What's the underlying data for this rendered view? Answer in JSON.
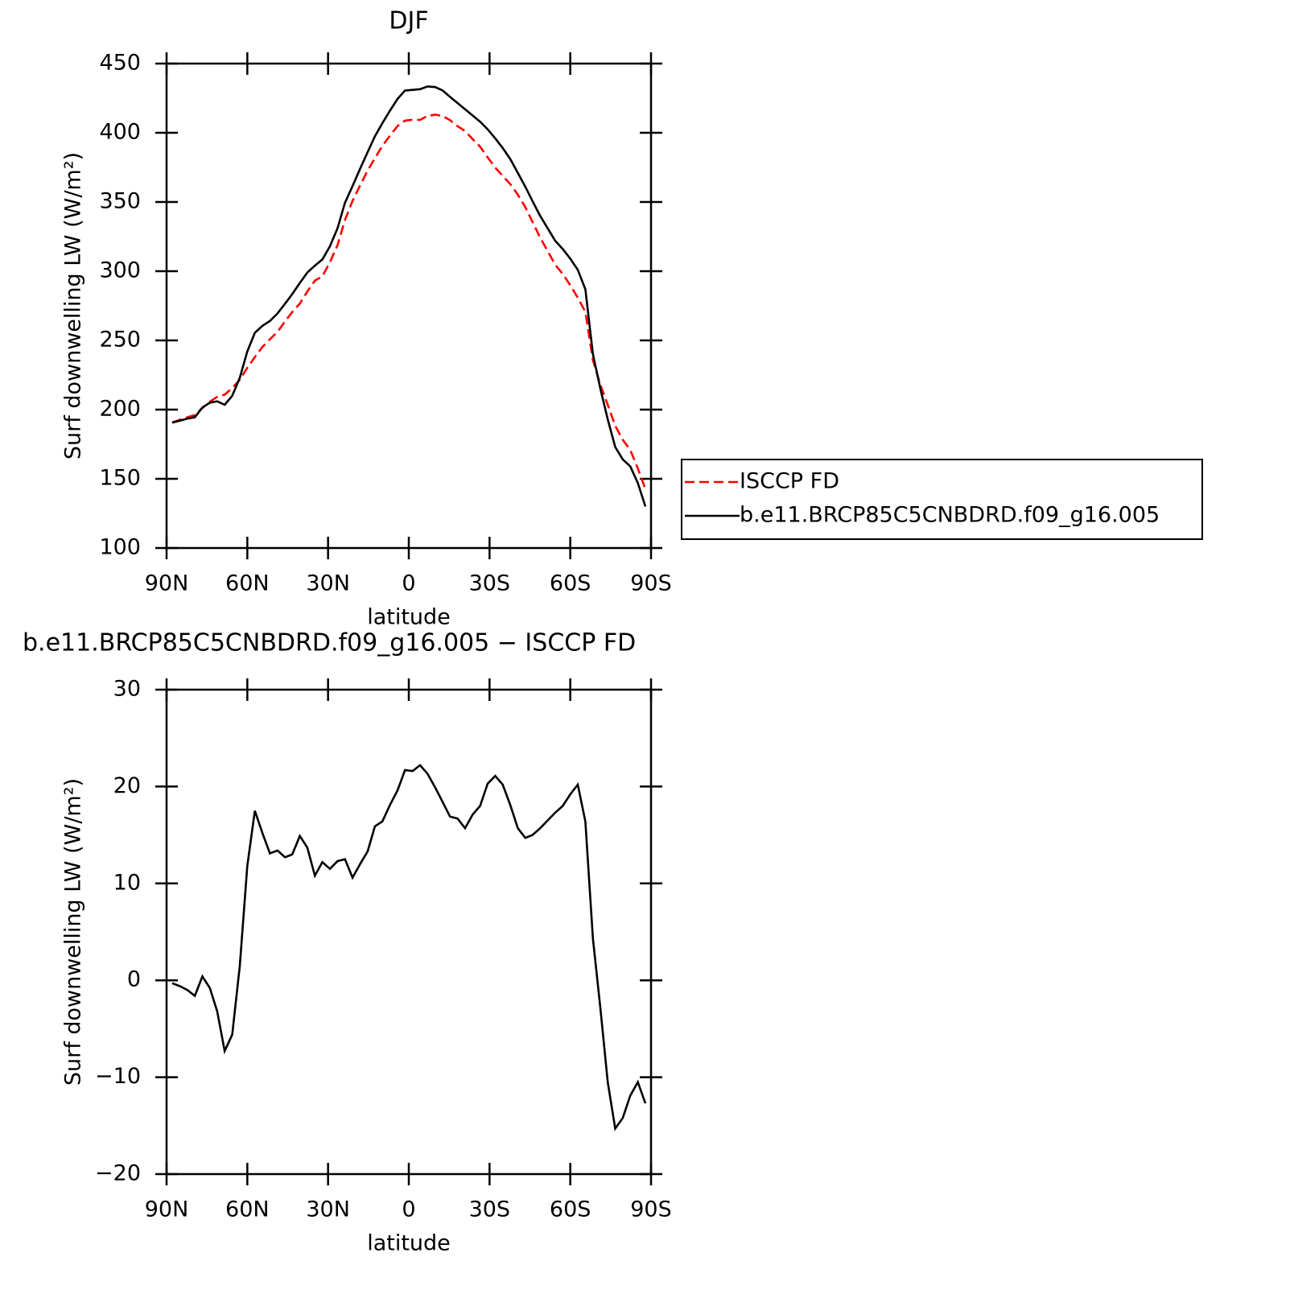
{
  "chart_data": [
    {
      "type": "line",
      "title": "DJF",
      "xlabel": "latitude",
      "ylabel": "Surf downwelling LW (W/m²)",
      "xlim": [
        90,
        -90
      ],
      "xticks": [
        {
          "value": 90,
          "label": "90N"
        },
        {
          "value": 60,
          "label": "60N"
        },
        {
          "value": 30,
          "label": "30N"
        },
        0,
        {
          "value": -30,
          "label": "30S"
        },
        {
          "value": -60,
          "label": "60S"
        },
        {
          "value": -90,
          "label": "90S"
        }
      ],
      "ylim": [
        100,
        450
      ],
      "yticks": [
        100,
        150,
        200,
        250,
        300,
        350,
        400,
        450
      ],
      "legend": "right",
      "x": [
        87.9,
        85.1,
        82.3,
        79.5,
        76.7,
        73.9,
        71.2,
        68.4,
        65.6,
        62.8,
        60.0,
        57.2,
        54.4,
        51.6,
        48.8,
        46.0,
        43.3,
        40.5,
        37.7,
        34.9,
        32.1,
        29.3,
        26.5,
        23.7,
        20.9,
        18.1,
        15.3,
        12.6,
        9.8,
        7.0,
        4.2,
        1.4,
        -1.4,
        -4.2,
        -7.0,
        -9.8,
        -12.6,
        -15.3,
        -18.1,
        -20.9,
        -23.7,
        -26.5,
        -29.3,
        -32.1,
        -34.9,
        -37.7,
        -40.5,
        -43.3,
        -46.0,
        -48.8,
        -51.6,
        -54.4,
        -57.2,
        -60.0,
        -62.8,
        -65.6,
        -68.4,
        -71.2,
        -73.9,
        -76.7,
        -79.5,
        -82.3,
        -85.1,
        -87.9
      ],
      "series": [
        {
          "name": "ISCCP FD",
          "color": "#ff0000",
          "dash": true,
          "values": [
            190.8,
            192.6,
            194.5,
            196.1,
            201.1,
            205.8,
            209.2,
            210.8,
            215.6,
            221.5,
            230.2,
            238,
            245.3,
            250.9,
            256.1,
            263.8,
            270.5,
            276.6,
            285.3,
            293.2,
            296.3,
            306.5,
            318.7,
            337,
            350.9,
            362,
            372.7,
            381.6,
            390.6,
            397.9,
            404.9,
            408.8,
            409.4,
            409.3,
            412.2,
            413.1,
            412.1,
            409.1,
            404.8,
            401.3,
            395.4,
            390,
            382.2,
            374.9,
            368.8,
            362.9,
            355.3,
            346.3,
            335.5,
            324.3,
            314.5,
            304.7,
            298,
            289.8,
            280.8,
            270.6,
            235.7,
            217.9,
            203.5,
            188.3,
            178.2,
            170.9,
            157.5,
            142.7
          ]
        },
        {
          "name": "b.e11.BRCP85C5CNBDRD.f09_g16.005",
          "color": "#000000",
          "dash": false,
          "values": [
            190.5,
            192,
            193.5,
            194.5,
            201.5,
            205,
            206,
            203.5,
            210,
            223,
            242,
            255.5,
            260.5,
            264,
            269.5,
            276.5,
            283.5,
            291.5,
            299,
            304,
            308.5,
            318,
            331,
            349.5,
            361.5,
            374,
            386,
            397.5,
            407,
            416,
            424.5,
            430.5,
            431,
            431.5,
            433.5,
            433,
            430.5,
            426,
            421.5,
            417,
            412.5,
            408,
            402.5,
            396,
            389,
            381,
            371,
            361,
            350.5,
            340,
            331,
            322,
            316,
            309,
            301,
            287,
            240,
            215,
            193,
            173,
            164,
            159,
            147,
            130
          ]
        }
      ]
    },
    {
      "type": "line",
      "title": "b.e11.BRCP85C5CNBDRD.f09_g16.005 − ISCCP FD",
      "xlabel": "latitude",
      "ylabel": "Surf downwelling LW (W/m²)",
      "xlim": [
        90,
        -90
      ],
      "xticks": [
        {
          "value": 90,
          "label": "90N"
        },
        {
          "value": 60,
          "label": "60N"
        },
        {
          "value": 30,
          "label": "30N"
        },
        0,
        {
          "value": -30,
          "label": "30S"
        },
        {
          "value": -60,
          "label": "60S"
        },
        {
          "value": -90,
          "label": "90S"
        }
      ],
      "ylim": [
        -20,
        30
      ],
      "yticks": [
        {
          "value": -20,
          "label": "−20"
        },
        {
          "value": -10,
          "label": "−10"
        },
        0,
        10,
        20,
        30
      ],
      "x": [
        87.9,
        85.1,
        82.3,
        79.5,
        76.7,
        73.9,
        71.2,
        68.4,
        65.6,
        62.8,
        60.0,
        57.2,
        54.4,
        51.6,
        48.8,
        46.0,
        43.3,
        40.5,
        37.7,
        34.9,
        32.1,
        29.3,
        26.5,
        23.7,
        20.9,
        18.1,
        15.3,
        12.6,
        9.8,
        7.0,
        4.2,
        1.4,
        -1.4,
        -4.2,
        -7.0,
        -9.8,
        -12.6,
        -15.3,
        -18.1,
        -20.9,
        -23.7,
        -26.5,
        -29.3,
        -32.1,
        -34.9,
        -37.7,
        -40.5,
        -43.3,
        -46.0,
        -48.8,
        -51.6,
        -54.4,
        -57.2,
        -60.0,
        -62.8,
        -65.6,
        -68.4,
        -71.2,
        -73.9,
        -76.7,
        -79.5,
        -82.3,
        -85.1,
        -87.9
      ],
      "series": [
        {
          "color": "#000000",
          "dash": false,
          "values": [
            -0.3,
            -0.6,
            -1.0,
            -1.6,
            0.4,
            -0.8,
            -3.2,
            -7.3,
            -5.6,
            1.5,
            11.8,
            17.5,
            15.2,
            13.1,
            13.4,
            12.7,
            13.0,
            14.9,
            13.7,
            10.8,
            12.2,
            11.5,
            12.3,
            12.5,
            10.6,
            12.0,
            13.3,
            15.9,
            16.4,
            18.1,
            19.6,
            21.7,
            21.6,
            22.2,
            21.3,
            19.9,
            18.4,
            16.9,
            16.7,
            15.7,
            17.1,
            18.0,
            20.3,
            21.1,
            20.2,
            18.1,
            15.7,
            14.7,
            15.0,
            15.7,
            16.5,
            17.3,
            18.0,
            19.2,
            20.2,
            16.4,
            4.3,
            -2.9,
            -10.5,
            -15.3,
            -14.2,
            -11.9,
            -10.5,
            -12.7
          ]
        }
      ]
    }
  ]
}
